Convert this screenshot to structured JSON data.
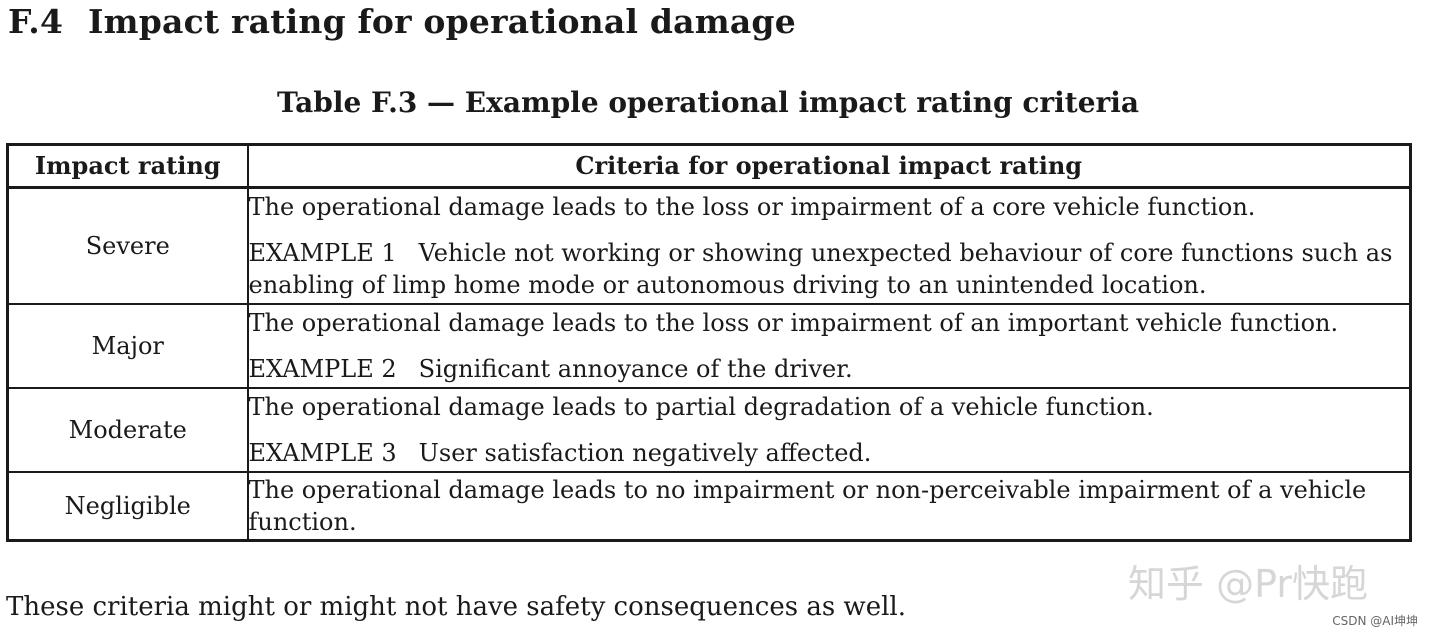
{
  "section": {
    "number": "F.4",
    "title": "Impact rating for operational damage"
  },
  "table": {
    "caption": "Table F.3 — Example operational impact rating criteria",
    "headers": {
      "rating": "Impact rating",
      "criteria": "Criteria for operational impact rating"
    },
    "rows": [
      {
        "rating": "Severe",
        "statement": "The operational damage leads to the loss or impairment of a core vehicle function.",
        "example_label": "EXAMPLE 1",
        "example_text": "Vehicle not working or showing unexpected behaviour of core functions such as enabling of limp home mode or autonomous driving to an unintended location."
      },
      {
        "rating": "Major",
        "statement": "The operational damage leads to the loss or impairment of an important vehicle function.",
        "example_label": "EXAMPLE 2",
        "example_text": "Significant annoyance of the driver."
      },
      {
        "rating": "Moderate",
        "statement": "The operational damage leads to partial degradation of a vehicle function.",
        "example_label": "EXAMPLE 3",
        "example_text": "User satisfaction negatively affected."
      },
      {
        "rating": "Negligible",
        "statement": "The operational damage leads to no impairment or non-perceivable impairment of a vehicle function."
      }
    ]
  },
  "footnote": "These criteria might or might not have safety consequences as well.",
  "watermark": "知乎 @Pr快跑",
  "source_tag": "CSDN @AI坤坤"
}
